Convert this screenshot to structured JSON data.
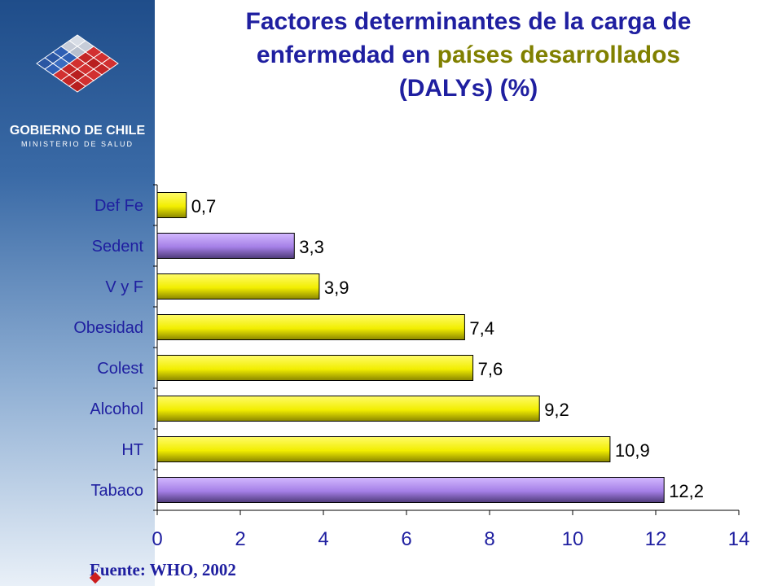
{
  "header": {
    "title_line1": "Factores determinantes de la carga de",
    "title_line2_a": "enfermedad en ",
    "title_line2_b": "países desarrollados",
    "title_line3": "(DALYs) (%)",
    "title_color": "#1f1fa0",
    "highlight_color": "#808000"
  },
  "brand": {
    "name": "GOBIERNO DE CHILE",
    "ministry": "MINISTERIO DE SALUD"
  },
  "footer": {
    "source": "Fuente: WHO, 2002"
  },
  "chart_data": {
    "type": "bar",
    "orientation": "horizontal",
    "categories": [
      "Def Fe",
      "Sedent",
      "V y F",
      "Obesidad",
      "Colest",
      "Alcohol",
      "HT",
      "Tabaco"
    ],
    "values": [
      0.7,
      3.3,
      3.9,
      7.4,
      7.6,
      9.2,
      10.9,
      12.2
    ],
    "value_labels": [
      "0,7",
      "3,3",
      "3,9",
      "7,4",
      "7,6",
      "9,2",
      "10,9",
      "12,2"
    ],
    "bar_colors": [
      "#ffff33",
      "#b088e8",
      "#ffff33",
      "#ffff33",
      "#ffff33",
      "#ffff33",
      "#ffff33",
      "#b088e8"
    ],
    "xlim": [
      0,
      14
    ],
    "xticks": [
      0,
      2,
      4,
      6,
      8,
      10,
      12,
      14
    ],
    "grid": false,
    "legend": "none",
    "label_color": "#1f1fa0"
  }
}
